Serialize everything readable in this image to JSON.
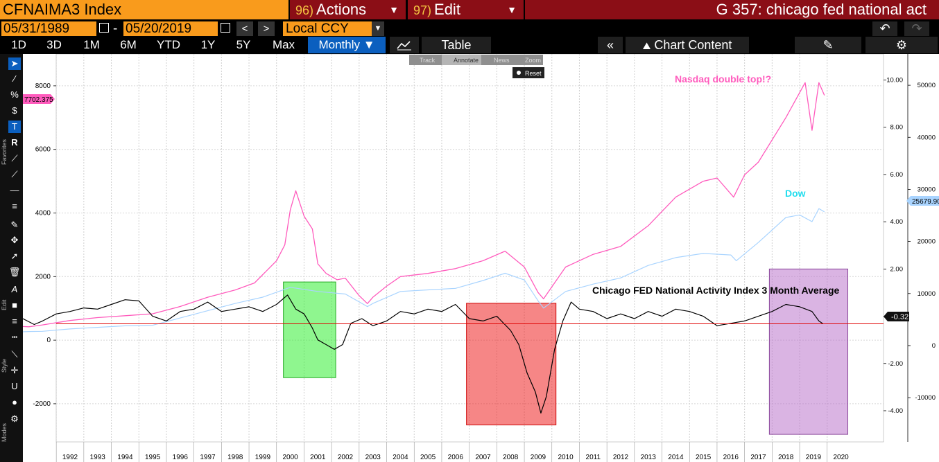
{
  "header": {
    "ticker": "CFNAIMA3 Index",
    "actions_num": "96)",
    "actions_label": "Actions",
    "edit_num": "97)",
    "edit_label": "Edit",
    "title": "G 357: chicago fed national act"
  },
  "dates": {
    "start": "05/31/1989",
    "end": "05/20/2019",
    "currency": "Local CCY"
  },
  "periods": [
    "1D",
    "3D",
    "1M",
    "6M",
    "YTD",
    "1Y",
    "5Y",
    "Max"
  ],
  "frequency": "Monthly ▼",
  "table_label": "Table",
  "chart_content_label": "Chart Content",
  "chart_toolbar": {
    "track": "Track",
    "annotate": "Annotate",
    "news": "News",
    "zoom": "Zoom",
    "reset": "Reset"
  },
  "side_labels": {
    "favorites": "Favorites",
    "edit": "Edit",
    "style": "Style",
    "modes": "Modes"
  },
  "colors": {
    "nasdaq": "#ff5bbd",
    "dow": "#a9d4ff",
    "cfnai": "#000000",
    "zero_line": "#e00000",
    "green_box": "#33ee33",
    "red_box": "#ee2222",
    "purple_box": "#bb77cc",
    "orange": "#f99b1c",
    "dark_red": "#8b0e16"
  },
  "chart_data": {
    "type": "line",
    "x_ticks": [
      "1992",
      "1993",
      "1994",
      "1995",
      "1996",
      "1997",
      "1998",
      "1999",
      "2000",
      "2001",
      "2002",
      "2003",
      "2004",
      "2005",
      "2006",
      "2007",
      "2008",
      "2009",
      "2010",
      "2011",
      "2012",
      "2013",
      "2014",
      "2015",
      "2016",
      "2017",
      "2018",
      "2019",
      "2020"
    ],
    "left_axis": {
      "ticks": [
        "8000",
        "6000",
        "4000",
        "2000",
        "0",
        "-2000"
      ],
      "range": [
        -3200,
        9000
      ]
    },
    "right_inner_axis": {
      "ticks": [
        "10.00",
        "8.00",
        "6.00",
        "4.00",
        "2.00",
        "0.00",
        "-2.00",
        "-4.00"
      ],
      "range": [
        -5.32,
        11.1
      ]
    },
    "right_outer_axis": {
      "ticks": [
        "50000",
        "40000",
        "30000",
        "20000",
        "10000",
        "0",
        "-10000"
      ],
      "range": [
        -18500,
        56000
      ]
    },
    "last_value_labels": {
      "nasdaq": "7702.375",
      "dow": "25679.90",
      "cfnai": "-0.32"
    },
    "annotations": {
      "nasdaq": "Nasdaq double top!?",
      "dow": "Dow",
      "cfnai": "Chicago FED National Activity Index 3 Month Average"
    },
    "series": [
      {
        "name": "Nasdaq",
        "axis": "left",
        "x": [
          1989.4,
          1990.5,
          1991.0,
          1992.0,
          1993.0,
          1994.0,
          1995.0,
          1996.0,
          1997.0,
          1998.0,
          1998.7,
          1999.5,
          1999.8,
          2000.0,
          2000.2,
          2000.5,
          2000.8,
          2001.0,
          2001.3,
          2001.7,
          2002.0,
          2002.5,
          2002.8,
          2003.0,
          2003.5,
          2004.0,
          2005.0,
          2006.0,
          2007.0,
          2007.8,
          2008.5,
          2009.0,
          2009.2,
          2010.0,
          2011.0,
          2012.0,
          2013.0,
          2014.0,
          2015.0,
          2015.5,
          2016.1,
          2016.5,
          2017.0,
          2018.0,
          2018.7,
          2018.95,
          2019.2,
          2019.4
        ],
        "y": [
          470,
          420,
          480,
          620,
          710,
          770,
          830,
          1060,
          1350,
          1580,
          1800,
          2500,
          3000,
          4100,
          4700,
          3900,
          3500,
          2400,
          2100,
          1900,
          1950,
          1400,
          1150,
          1350,
          1700,
          2000,
          2100,
          2250,
          2500,
          2800,
          2300,
          1500,
          1300,
          2300,
          2700,
          2950,
          3600,
          4500,
          5000,
          5100,
          4500,
          5200,
          5600,
          7000,
          8100,
          6600,
          8100,
          7702
        ]
      },
      {
        "name": "Dow",
        "axis": "right_outer",
        "x": [
          1989.4,
          1990.5,
          1991.0,
          1992.0,
          1993.0,
          1994.0,
          1995.0,
          1996.0,
          1997.0,
          1998.0,
          1999.0,
          2000.0,
          2001.0,
          2002.0,
          2002.8,
          2003.0,
          2004.0,
          2005.0,
          2006.0,
          2007.0,
          2007.8,
          2008.5,
          2009.0,
          2009.2,
          2010.0,
          2011.0,
          2012.0,
          2013.0,
          2014.0,
          2015.0,
          2016.0,
          2016.2,
          2017.0,
          2018.0,
          2018.5,
          2018.95,
          2019.2,
          2019.4
        ],
        "y": [
          2450,
          2700,
          2750,
          3200,
          3500,
          3800,
          3900,
          5300,
          6700,
          8100,
          9300,
          11200,
          10400,
          9900,
          7500,
          8100,
          10400,
          10700,
          11000,
          12500,
          13900,
          12600,
          8600,
          7200,
          10400,
          11800,
          13000,
          15400,
          16900,
          17700,
          17400,
          16300,
          19800,
          24600,
          25100,
          23800,
          26300,
          25679.9
        ]
      },
      {
        "name": "Chicago FED National Activity Index 3 Month Average",
        "axis": "right_inner",
        "x": [
          1989.4,
          1989.8,
          1990.2,
          1990.7,
          1991.0,
          1991.5,
          1992.0,
          1992.5,
          1993.0,
          1993.5,
          1994.0,
          1994.5,
          1995.0,
          1995.5,
          1996.0,
          1996.5,
          1997.0,
          1997.5,
          1998.0,
          1998.5,
          1999.0,
          1999.5,
          1999.9,
          2000.2,
          2000.5,
          2000.8,
          2001.0,
          2001.3,
          2001.6,
          2001.9,
          2002.2,
          2002.6,
          2003.0,
          2003.5,
          2004.0,
          2004.5,
          2005.0,
          2005.5,
          2006.0,
          2006.5,
          2007.0,
          2007.5,
          2008.0,
          2008.3,
          2008.6,
          2008.9,
          2009.1,
          2009.3,
          2009.6,
          2009.9,
          2010.2,
          2010.5,
          2011.0,
          2011.5,
          2012.0,
          2012.5,
          2013.0,
          2013.5,
          2014.0,
          2014.5,
          2015.0,
          2015.5,
          2016.0,
          2016.5,
          2017.0,
          2017.5,
          2018.0,
          2018.5,
          2018.95,
          2019.2,
          2019.35
        ],
        "y": [
          -0.4,
          0.05,
          -0.05,
          -0.35,
          -0.2,
          0.1,
          0.2,
          0.35,
          0.3,
          0.5,
          0.7,
          0.65,
          0.0,
          -0.2,
          0.2,
          0.3,
          0.6,
          0.2,
          0.3,
          0.4,
          0.2,
          0.5,
          0.9,
          0.3,
          0.1,
          -0.5,
          -1.0,
          -1.2,
          -1.4,
          -1.2,
          -0.3,
          -0.1,
          -0.4,
          -0.2,
          0.2,
          0.1,
          0.3,
          0.2,
          0.5,
          -0.1,
          -0.2,
          0.0,
          -0.6,
          -1.2,
          -2.4,
          -3.2,
          -4.1,
          -3.4,
          -1.4,
          -0.2,
          0.6,
          0.3,
          0.2,
          -0.1,
          0.1,
          -0.1,
          0.2,
          0.0,
          0.3,
          0.2,
          0.0,
          -0.4,
          -0.3,
          -0.2,
          0.0,
          0.2,
          0.5,
          0.4,
          0.2,
          -0.2,
          -0.32
        ]
      }
    ],
    "highlight_boxes": [
      {
        "color": "green",
        "x": [
          1999.75,
          2001.65
        ],
        "y": [
          -2.6,
          1.45
        ]
      },
      {
        "color": "red",
        "x": [
          2006.4,
          2009.65
        ],
        "y": [
          -4.6,
          0.55
        ]
      },
      {
        "color": "purple",
        "x": [
          2017.4,
          2020.25
        ],
        "y": [
          -5.0,
          2.0
        ]
      }
    ],
    "reference_line": {
      "axis": "right_inner",
      "y": -0.32
    },
    "grid": true
  }
}
